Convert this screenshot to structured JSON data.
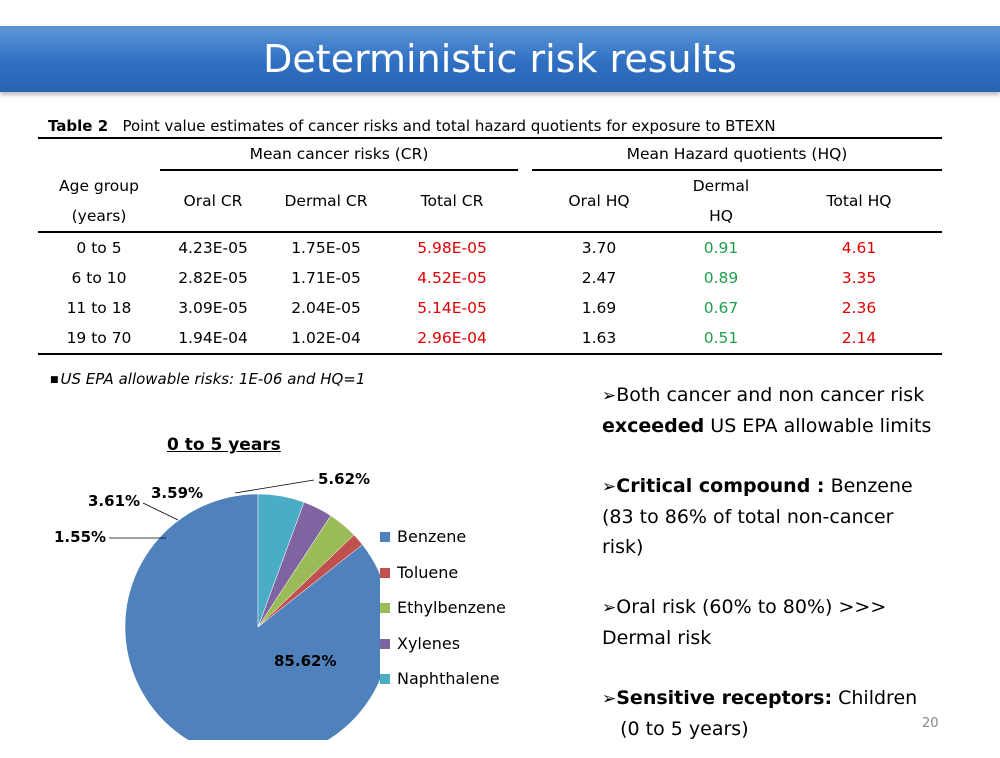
{
  "title": "Deterministic risk results",
  "table": {
    "caption_label": "Table 2",
    "caption_text": "Point value estimates of cancer risks and total hazard quotients for exposure to BTEXN",
    "group_cr": "Mean cancer risks (CR)",
    "group_hq": "Mean Hazard quotients (HQ)",
    "col_age_line1": "Age group",
    "col_age_line2": "(years)",
    "col_oral_cr": "Oral CR",
    "col_dermal_cr": "Dermal CR",
    "col_total_cr": "Total CR",
    "col_oral_hq": "Oral HQ",
    "col_dermal_hq_line1": "Dermal",
    "col_dermal_hq_line2": "HQ",
    "col_total_hq": "Total HQ",
    "rows": [
      {
        "age": "0 to 5",
        "oral_cr": "4.23E-05",
        "dermal_cr": "1.75E-05",
        "total_cr": "5.98E-05",
        "oral_hq": "3.70",
        "dermal_hq": "0.91",
        "total_hq": "4.61"
      },
      {
        "age": "6 to 10",
        "oral_cr": "2.82E-05",
        "dermal_cr": "1.71E-05",
        "total_cr": "4.52E-05",
        "oral_hq": "2.47",
        "dermal_hq": "0.89",
        "total_hq": "3.35"
      },
      {
        "age": "11 to 18",
        "oral_cr": "3.09E-05",
        "dermal_cr": "2.04E-05",
        "total_cr": "5.14E-05",
        "oral_hq": "1.69",
        "dermal_hq": "0.67",
        "total_hq": "2.36"
      },
      {
        "age": "19 to 70",
        "oral_cr": "1.94E-04",
        "dermal_cr": "1.02E-04",
        "total_cr": "2.96E-04",
        "oral_hq": "1.63",
        "dermal_hq": "0.51",
        "total_hq": "2.14"
      }
    ]
  },
  "note": "US EPA allowable risks: 1E-06 and HQ=1",
  "chart_data": {
    "type": "pie",
    "title": "0 to 5 years",
    "legend_placement": "right",
    "slices": [
      {
        "name": "Benzene",
        "value": 85.62,
        "label": "85.62%",
        "color": "#4f81bd"
      },
      {
        "name": "Toluene",
        "value": 1.55,
        "label": "1.55%",
        "color": "#c0504d"
      },
      {
        "name": "Ethylbenzene",
        "value": 3.61,
        "label": "3.61%",
        "color": "#9bbb59"
      },
      {
        "name": "Xylenes",
        "value": 3.59,
        "label": "3.59%",
        "color": "#8064a2"
      },
      {
        "name": "Naphthalene",
        "value": 5.62,
        "label": "5.62%",
        "color": "#4bacc6"
      }
    ]
  },
  "bullets": {
    "b1_text1": "Both cancer and non cancer risk",
    "b1_bold": "exceeded",
    "b1_text2": " US EPA allowable limits",
    "b2_bold": "Critical compound :",
    "b2_text1": " Benzene",
    "b2_text2": "(83 to 86% of total non-cancer",
    "b2_text3": "risk)",
    "b3_text1": "Oral  risk (60% to 80%) >>>",
    "b3_text2": "Dermal  risk",
    "b4_bold": "Sensitive receptors:",
    "b4_text1": " Children",
    "b4_text2": "(0 to 5 years)"
  },
  "page_number": "20"
}
